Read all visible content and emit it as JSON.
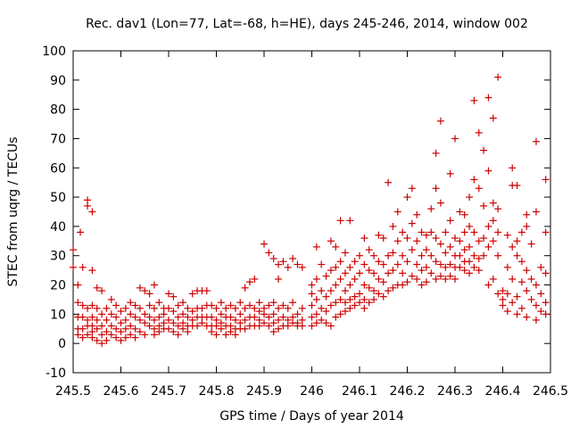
{
  "chart_data": {
    "type": "scatter",
    "title": "Rec. dav1 (Lon=77, Lat=-68, h=HE), days 245-246, 2014, window 002",
    "xlabel": "GPS time / Days of year 2014",
    "ylabel": "STEC from uqrg / TECUs",
    "xlim": [
      245.5,
      246.5
    ],
    "ylim": [
      -10,
      100
    ],
    "xticks": [
      "245.5",
      "245.6",
      "245.7",
      "245.8",
      "245.9",
      "246",
      "246.1",
      "246.2",
      "246.3",
      "246.4",
      "246.5"
    ],
    "yticks": [
      "-10",
      "0",
      "10",
      "20",
      "30",
      "40",
      "50",
      "60",
      "70",
      "80",
      "90",
      "100"
    ],
    "grid": false,
    "marker": "+",
    "color": "#cc0000",
    "points": [
      [
        245.5,
        32
      ],
      [
        245.5,
        26
      ],
      [
        245.51,
        20
      ],
      [
        245.51,
        14
      ],
      [
        245.51,
        9
      ],
      [
        245.51,
        5
      ],
      [
        245.51,
        3
      ],
      [
        245.515,
        38
      ],
      [
        245.52,
        26
      ],
      [
        245.52,
        13
      ],
      [
        245.52,
        9
      ],
      [
        245.52,
        5
      ],
      [
        245.52,
        2
      ],
      [
        245.53,
        49
      ],
      [
        245.53,
        47
      ],
      [
        245.53,
        12
      ],
      [
        245.53,
        8
      ],
      [
        245.53,
        6
      ],
      [
        245.53,
        3
      ],
      [
        245.54,
        45
      ],
      [
        245.54,
        25
      ],
      [
        245.54,
        13
      ],
      [
        245.54,
        9
      ],
      [
        245.54,
        6
      ],
      [
        245.54,
        4
      ],
      [
        245.54,
        2
      ],
      [
        245.55,
        19
      ],
      [
        245.55,
        12
      ],
      [
        245.55,
        8
      ],
      [
        245.55,
        5
      ],
      [
        245.55,
        1
      ],
      [
        245.56,
        18
      ],
      [
        245.56,
        10
      ],
      [
        245.56,
        6
      ],
      [
        245.56,
        3
      ],
      [
        245.56,
        0
      ],
      [
        245.57,
        12
      ],
      [
        245.57,
        8
      ],
      [
        245.57,
        4
      ],
      [
        245.57,
        1
      ],
      [
        245.58,
        15
      ],
      [
        245.58,
        10
      ],
      [
        245.58,
        6
      ],
      [
        245.58,
        3
      ],
      [
        245.59,
        13
      ],
      [
        245.59,
        9
      ],
      [
        245.59,
        5
      ],
      [
        245.59,
        2
      ],
      [
        245.6,
        11
      ],
      [
        245.6,
        7
      ],
      [
        245.6,
        4
      ],
      [
        245.6,
        1
      ],
      [
        245.61,
        12
      ],
      [
        245.61,
        8
      ],
      [
        245.61,
        5
      ],
      [
        245.61,
        2
      ],
      [
        245.62,
        14
      ],
      [
        245.62,
        10
      ],
      [
        245.62,
        6
      ],
      [
        245.62,
        3
      ],
      [
        245.63,
        13
      ],
      [
        245.63,
        9
      ],
      [
        245.63,
        5
      ],
      [
        245.63,
        2
      ],
      [
        245.64,
        19
      ],
      [
        245.64,
        12
      ],
      [
        245.64,
        8
      ],
      [
        245.64,
        4
      ],
      [
        245.65,
        18
      ],
      [
        245.65,
        10
      ],
      [
        245.65,
        7
      ],
      [
        245.65,
        3
      ],
      [
        245.66,
        17
      ],
      [
        245.66,
        13
      ],
      [
        245.66,
        9
      ],
      [
        245.66,
        6
      ],
      [
        245.67,
        20
      ],
      [
        245.67,
        12
      ],
      [
        245.67,
        8
      ],
      [
        245.67,
        5
      ],
      [
        245.67,
        3
      ],
      [
        245.68,
        14
      ],
      [
        245.68,
        9
      ],
      [
        245.68,
        6
      ],
      [
        245.68,
        4
      ],
      [
        245.69,
        12
      ],
      [
        245.69,
        10
      ],
      [
        245.69,
        7
      ],
      [
        245.69,
        5
      ],
      [
        245.7,
        17
      ],
      [
        245.7,
        12
      ],
      [
        245.7,
        8
      ],
      [
        245.7,
        5
      ],
      [
        245.71,
        16
      ],
      [
        245.71,
        11
      ],
      [
        245.71,
        7
      ],
      [
        245.71,
        4
      ],
      [
        245.72,
        13
      ],
      [
        245.72,
        9
      ],
      [
        245.72,
        6
      ],
      [
        245.72,
        3
      ],
      [
        245.73,
        14
      ],
      [
        245.73,
        10
      ],
      [
        245.73,
        7
      ],
      [
        245.73,
        5
      ],
      [
        245.74,
        12
      ],
      [
        245.74,
        9
      ],
      [
        245.74,
        6
      ],
      [
        245.74,
        4
      ],
      [
        245.75,
        17
      ],
      [
        245.75,
        11
      ],
      [
        245.75,
        8
      ],
      [
        245.75,
        6
      ],
      [
        245.76,
        18
      ],
      [
        245.76,
        12
      ],
      [
        245.76,
        9
      ],
      [
        245.76,
        6
      ],
      [
        245.77,
        18
      ],
      [
        245.77,
        12
      ],
      [
        245.77,
        9
      ],
      [
        245.77,
        7
      ],
      [
        245.78,
        18
      ],
      [
        245.78,
        13
      ],
      [
        245.78,
        9
      ],
      [
        245.78,
        6
      ],
      [
        245.79,
        13
      ],
      [
        245.79,
        9
      ],
      [
        245.79,
        6
      ],
      [
        245.79,
        4
      ],
      [
        245.8,
        12
      ],
      [
        245.8,
        8
      ],
      [
        245.8,
        6
      ],
      [
        245.8,
        3
      ],
      [
        245.81,
        14
      ],
      [
        245.81,
        10
      ],
      [
        245.81,
        7
      ],
      [
        245.81,
        5
      ],
      [
        245.82,
        12
      ],
      [
        245.82,
        9
      ],
      [
        245.82,
        6
      ],
      [
        245.82,
        3
      ],
      [
        245.83,
        13
      ],
      [
        245.83,
        9
      ],
      [
        245.83,
        6
      ],
      [
        245.83,
        4
      ],
      [
        245.84,
        12
      ],
      [
        245.84,
        8
      ],
      [
        245.84,
        5
      ],
      [
        245.84,
        3
      ],
      [
        245.85,
        14
      ],
      [
        245.85,
        10
      ],
      [
        245.85,
        7
      ],
      [
        245.85,
        5
      ],
      [
        245.86,
        19
      ],
      [
        245.86,
        12
      ],
      [
        245.86,
        8
      ],
      [
        245.86,
        5
      ],
      [
        245.87,
        21
      ],
      [
        245.87,
        13
      ],
      [
        245.87,
        9
      ],
      [
        245.87,
        6
      ],
      [
        245.88,
        22
      ],
      [
        245.88,
        12
      ],
      [
        245.88,
        9
      ],
      [
        245.88,
        6
      ],
      [
        245.89,
        14
      ],
      [
        245.89,
        11
      ],
      [
        245.89,
        8
      ],
      [
        245.89,
        6
      ],
      [
        245.9,
        34
      ],
      [
        245.9,
        12
      ],
      [
        245.9,
        10
      ],
      [
        245.9,
        7
      ],
      [
        245.91,
        31
      ],
      [
        245.91,
        13
      ],
      [
        245.91,
        9
      ],
      [
        245.91,
        6
      ],
      [
        245.92,
        29
      ],
      [
        245.92,
        14
      ],
      [
        245.92,
        10
      ],
      [
        245.92,
        7
      ],
      [
        245.92,
        4
      ],
      [
        245.93,
        27
      ],
      [
        245.93,
        22
      ],
      [
        245.93,
        12
      ],
      [
        245.93,
        8
      ],
      [
        245.93,
        5
      ],
      [
        245.94,
        28
      ],
      [
        245.94,
        13
      ],
      [
        245.94,
        9
      ],
      [
        245.94,
        6
      ],
      [
        245.95,
        26
      ],
      [
        245.95,
        12
      ],
      [
        245.95,
        8
      ],
      [
        245.95,
        6
      ],
      [
        245.96,
        29
      ],
      [
        245.96,
        14
      ],
      [
        245.96,
        9
      ],
      [
        245.96,
        7
      ],
      [
        245.97,
        27
      ],
      [
        245.97,
        10
      ],
      [
        245.97,
        7
      ],
      [
        245.97,
        6
      ],
      [
        245.98,
        26
      ],
      [
        245.98,
        12
      ],
      [
        245.98,
        8
      ],
      [
        245.98,
        6
      ],
      [
        246.0,
        20
      ],
      [
        246.0,
        17
      ],
      [
        246.0,
        13
      ],
      [
        246.0,
        9
      ],
      [
        246.0,
        6
      ],
      [
        246.01,
        33
      ],
      [
        246.01,
        22
      ],
      [
        246.01,
        15
      ],
      [
        246.01,
        10
      ],
      [
        246.01,
        7
      ],
      [
        246.02,
        27
      ],
      [
        246.02,
        18
      ],
      [
        246.02,
        12
      ],
      [
        246.02,
        8
      ],
      [
        246.03,
        23
      ],
      [
        246.03,
        16
      ],
      [
        246.03,
        11
      ],
      [
        246.03,
        7
      ],
      [
        246.04,
        35
      ],
      [
        246.04,
        25
      ],
      [
        246.04,
        18
      ],
      [
        246.04,
        13
      ],
      [
        246.04,
        6
      ],
      [
        246.05,
        33
      ],
      [
        246.05,
        26
      ],
      [
        246.05,
        20
      ],
      [
        246.05,
        14
      ],
      [
        246.05,
        9
      ],
      [
        246.06,
        42
      ],
      [
        246.06,
        28
      ],
      [
        246.06,
        22
      ],
      [
        246.06,
        15
      ],
      [
        246.06,
        10
      ],
      [
        246.07,
        31
      ],
      [
        246.07,
        24
      ],
      [
        246.07,
        18
      ],
      [
        246.07,
        14
      ],
      [
        246.07,
        11
      ],
      [
        246.08,
        42
      ],
      [
        246.08,
        26
      ],
      [
        246.08,
        20
      ],
      [
        246.08,
        15
      ],
      [
        246.08,
        12
      ],
      [
        246.09,
        28
      ],
      [
        246.09,
        22
      ],
      [
        246.09,
        16
      ],
      [
        246.09,
        13
      ],
      [
        246.1,
        30
      ],
      [
        246.1,
        24
      ],
      [
        246.1,
        17
      ],
      [
        246.1,
        14
      ],
      [
        246.11,
        36
      ],
      [
        246.11,
        27
      ],
      [
        246.11,
        20
      ],
      [
        246.11,
        15
      ],
      [
        246.11,
        12
      ],
      [
        246.12,
        32
      ],
      [
        246.12,
        25
      ],
      [
        246.12,
        19
      ],
      [
        246.12,
        14
      ],
      [
        246.13,
        30
      ],
      [
        246.13,
        24
      ],
      [
        246.13,
        18
      ],
      [
        246.13,
        15
      ],
      [
        246.14,
        37
      ],
      [
        246.14,
        28
      ],
      [
        246.14,
        22
      ],
      [
        246.14,
        17
      ],
      [
        246.15,
        36
      ],
      [
        246.15,
        27
      ],
      [
        246.15,
        21
      ],
      [
        246.15,
        16
      ],
      [
        246.16,
        55
      ],
      [
        246.16,
        30
      ],
      [
        246.16,
        24
      ],
      [
        246.16,
        18
      ],
      [
        246.17,
        40
      ],
      [
        246.17,
        31
      ],
      [
        246.17,
        25
      ],
      [
        246.17,
        19
      ],
      [
        246.18,
        45
      ],
      [
        246.18,
        35
      ],
      [
        246.18,
        27
      ],
      [
        246.18,
        20
      ],
      [
        246.19,
        38
      ],
      [
        246.19,
        30
      ],
      [
        246.19,
        24
      ],
      [
        246.19,
        20
      ],
      [
        246.2,
        50
      ],
      [
        246.2,
        36
      ],
      [
        246.2,
        28
      ],
      [
        246.2,
        21
      ],
      [
        246.21,
        53
      ],
      [
        246.21,
        41
      ],
      [
        246.21,
        32
      ],
      [
        246.21,
        23
      ],
      [
        246.22,
        44
      ],
      [
        246.22,
        35
      ],
      [
        246.22,
        27
      ],
      [
        246.22,
        22
      ],
      [
        246.23,
        38
      ],
      [
        246.23,
        30
      ],
      [
        246.23,
        25
      ],
      [
        246.23,
        20
      ],
      [
        246.24,
        37
      ],
      [
        246.24,
        32
      ],
      [
        246.24,
        26
      ],
      [
        246.24,
        21
      ],
      [
        246.25,
        46
      ],
      [
        246.25,
        38
      ],
      [
        246.25,
        30
      ],
      [
        246.25,
        24
      ],
      [
        246.26,
        53
      ],
      [
        246.26,
        65
      ],
      [
        246.26,
        36
      ],
      [
        246.26,
        28
      ],
      [
        246.26,
        22
      ],
      [
        246.27,
        76
      ],
      [
        246.27,
        48
      ],
      [
        246.27,
        34
      ],
      [
        246.27,
        27
      ],
      [
        246.27,
        23
      ],
      [
        246.28,
        38
      ],
      [
        246.28,
        31
      ],
      [
        246.28,
        26
      ],
      [
        246.28,
        22
      ],
      [
        246.29,
        58
      ],
      [
        246.29,
        42
      ],
      [
        246.29,
        33
      ],
      [
        246.29,
        27
      ],
      [
        246.29,
        23
      ],
      [
        246.3,
        70
      ],
      [
        246.3,
        36
      ],
      [
        246.3,
        30
      ],
      [
        246.3,
        26
      ],
      [
        246.3,
        22
      ],
      [
        246.31,
        45
      ],
      [
        246.31,
        35
      ],
      [
        246.31,
        30
      ],
      [
        246.31,
        26
      ],
      [
        246.32,
        44
      ],
      [
        246.32,
        38
      ],
      [
        246.32,
        32
      ],
      [
        246.32,
        28
      ],
      [
        246.32,
        25
      ],
      [
        246.33,
        50
      ],
      [
        246.33,
        40
      ],
      [
        246.33,
        33
      ],
      [
        246.33,
        28
      ],
      [
        246.33,
        24
      ],
      [
        246.34,
        83
      ],
      [
        246.34,
        56
      ],
      [
        246.34,
        38
      ],
      [
        246.34,
        30
      ],
      [
        246.34,
        26
      ],
      [
        246.35,
        72
      ],
      [
        246.35,
        53
      ],
      [
        246.35,
        35
      ],
      [
        246.35,
        29
      ],
      [
        246.35,
        25
      ],
      [
        246.36,
        66
      ],
      [
        246.36,
        47
      ],
      [
        246.36,
        36
      ],
      [
        246.36,
        30
      ],
      [
        246.37,
        84
      ],
      [
        246.37,
        59
      ],
      [
        246.37,
        40
      ],
      [
        246.37,
        33
      ],
      [
        246.37,
        20
      ],
      [
        246.38,
        77
      ],
      [
        246.38,
        48
      ],
      [
        246.38,
        42
      ],
      [
        246.38,
        35
      ],
      [
        246.38,
        22
      ],
      [
        246.39,
        91
      ],
      [
        246.39,
        46
      ],
      [
        246.39,
        38
      ],
      [
        246.39,
        30
      ],
      [
        246.39,
        17
      ],
      [
        246.4,
        18
      ],
      [
        246.4,
        15
      ],
      [
        246.4,
        13
      ],
      [
        246.41,
        37
      ],
      [
        246.41,
        26
      ],
      [
        246.41,
        17
      ],
      [
        246.41,
        11
      ],
      [
        246.42,
        60
      ],
      [
        246.42,
        54
      ],
      [
        246.42,
        33
      ],
      [
        246.42,
        22
      ],
      [
        246.42,
        14
      ],
      [
        246.43,
        54
      ],
      [
        246.43,
        35
      ],
      [
        246.43,
        30
      ],
      [
        246.43,
        16
      ],
      [
        246.43,
        10
      ],
      [
        246.44,
        38
      ],
      [
        246.44,
        28
      ],
      [
        246.44,
        21
      ],
      [
        246.44,
        12
      ],
      [
        246.45,
        44
      ],
      [
        246.45,
        40
      ],
      [
        246.45,
        25
      ],
      [
        246.45,
        18
      ],
      [
        246.45,
        9
      ],
      [
        246.46,
        34
      ],
      [
        246.46,
        22
      ],
      [
        246.46,
        15
      ],
      [
        246.47,
        69
      ],
      [
        246.47,
        45
      ],
      [
        246.47,
        20
      ],
      [
        246.47,
        13
      ],
      [
        246.47,
        8
      ],
      [
        246.48,
        26
      ],
      [
        246.48,
        17
      ],
      [
        246.48,
        11
      ],
      [
        246.49,
        56
      ],
      [
        246.49,
        38
      ],
      [
        246.49,
        24
      ],
      [
        246.49,
        14
      ],
      [
        246.49,
        10
      ]
    ]
  }
}
